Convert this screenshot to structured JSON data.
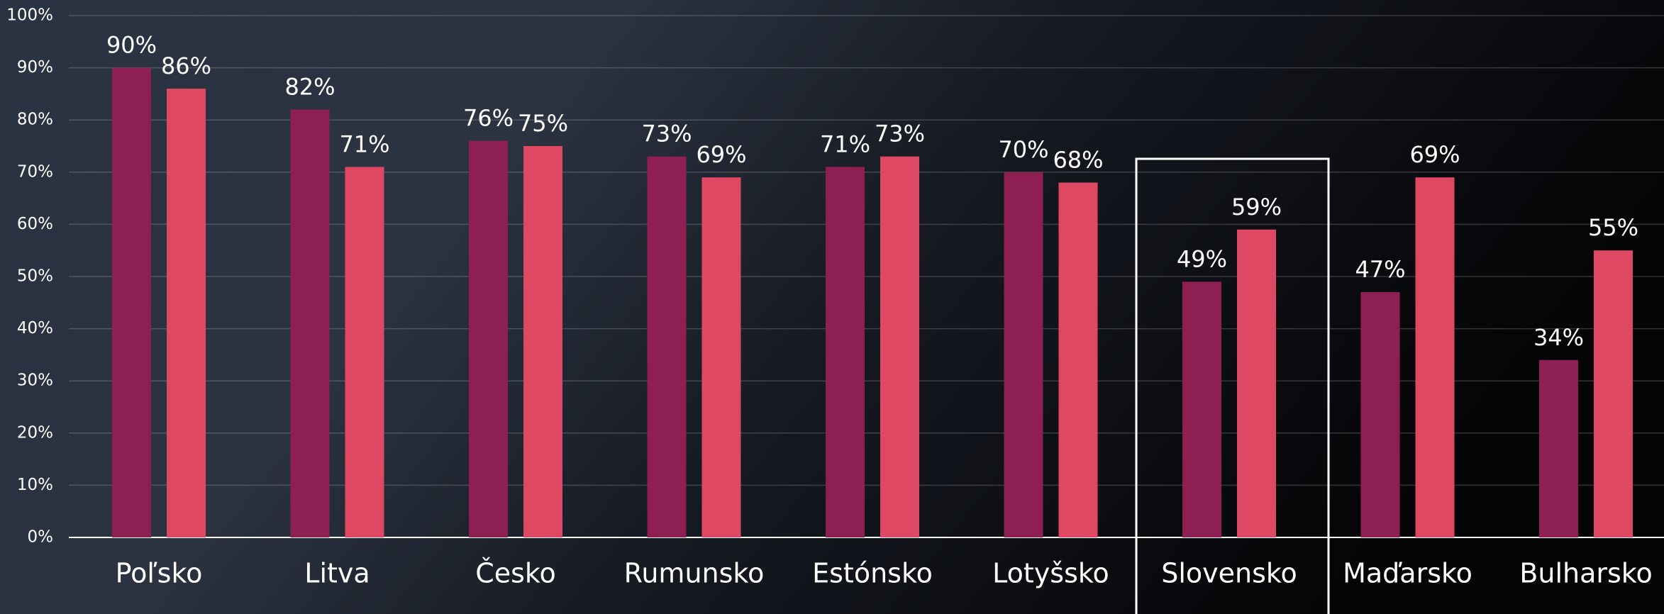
{
  "chart_data": {
    "type": "bar",
    "categories": [
      "Poľsko",
      "Litva",
      "Česko",
      "Rumunsko",
      "Estónsko",
      "Lotyšsko",
      "Slovensko",
      "Maďarsko",
      "Bulharsko"
    ],
    "series": [
      {
        "color": "#8e1f52",
        "values": [
          90,
          82,
          76,
          73,
          71,
          70,
          49,
          47,
          34
        ],
        "value_labels": [
          "90%",
          "82%",
          "76%",
          "73%",
          "71%",
          "70%",
          "49%",
          "47%",
          "34%"
        ]
      },
      {
        "color": "#de4863",
        "values": [
          86,
          71,
          75,
          69,
          73,
          68,
          59,
          69,
          55
        ],
        "value_labels": [
          "86%",
          "71%",
          "75%",
          "69%",
          "73%",
          "68%",
          "59%",
          "69%",
          "55%"
        ]
      }
    ],
    "ylim": [
      0,
      100
    ],
    "yticks": [
      {
        "value": 0,
        "label": "0%"
      },
      {
        "value": 10,
        "label": "10%"
      },
      {
        "value": 20,
        "label": "20%"
      },
      {
        "value": 30,
        "label": "30%"
      },
      {
        "value": 40,
        "label": "40%"
      },
      {
        "value": 50,
        "label": "50%"
      },
      {
        "value": 60,
        "label": "60%"
      },
      {
        "value": 70,
        "label": "70%"
      },
      {
        "value": 80,
        "label": "80%"
      },
      {
        "value": 90,
        "label": "90%"
      },
      {
        "value": 100,
        "label": "100%"
      }
    ],
    "grid": true
  }
}
